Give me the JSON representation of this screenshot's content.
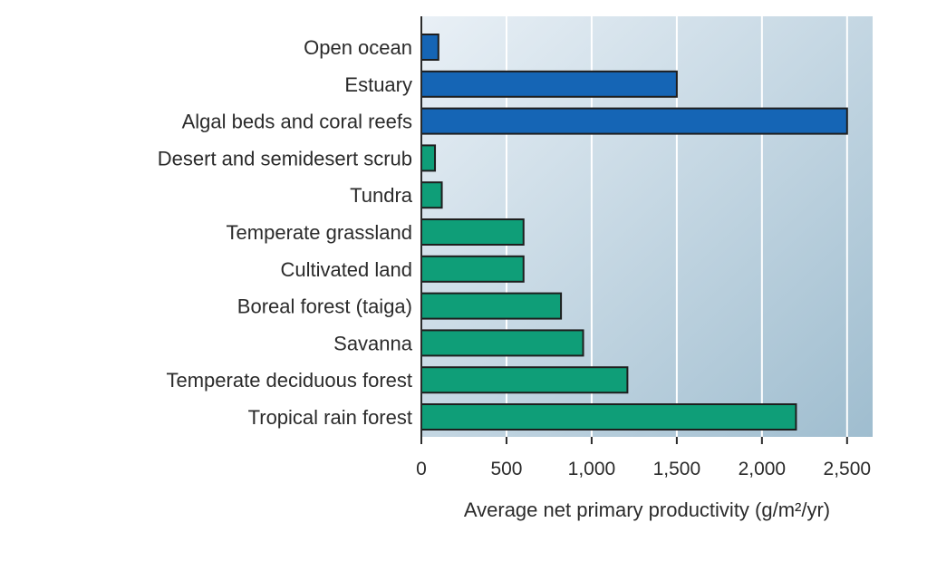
{
  "chart_data": {
    "type": "bar",
    "orientation": "horizontal",
    "categories": [
      "Open ocean",
      "Estuary",
      "Algal beds and coral reefs",
      "Desert and semidesert scrub",
      "Tundra",
      "Temperate grassland",
      "Cultivated land",
      "Boreal forest (taiga)",
      "Savanna",
      "Temperate deciduous forest",
      "Tropical rain forest"
    ],
    "values": [
      100,
      1500,
      2500,
      80,
      120,
      600,
      600,
      820,
      950,
      1210,
      2200
    ],
    "bar_colors": [
      "#1565b5",
      "#1565b5",
      "#1565b5",
      "#0f9e78",
      "#0f9e78",
      "#0f9e78",
      "#0f9e78",
      "#0f9e78",
      "#0f9e78",
      "#0f9e78",
      "#0f9e78"
    ],
    "xlim": [
      0,
      2650
    ],
    "xticks": [
      0,
      500,
      1000,
      1500,
      2000,
      2500
    ],
    "xtick_labels": [
      "0",
      "500",
      "1,000",
      "1,500",
      "2,000",
      "2,500"
    ],
    "xlabel": "Average net primary productivity (g/m²/yr)",
    "ylabel": "",
    "title": "",
    "grid": "vertical",
    "background_gradient": [
      "#e9f0f6",
      "#9fbdcf"
    ]
  }
}
